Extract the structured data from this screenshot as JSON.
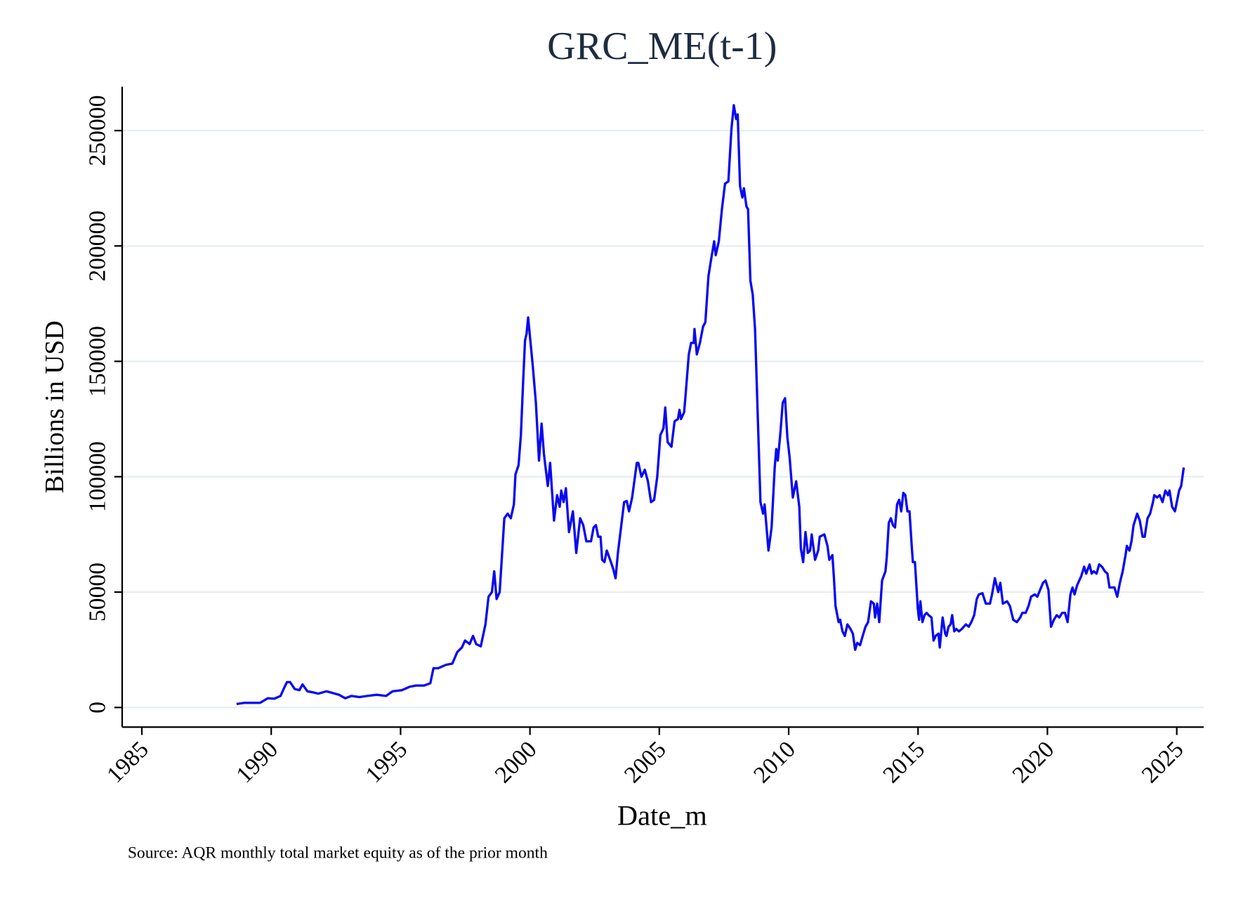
{
  "chart_data": {
    "type": "line",
    "title": "GRC_ME(t-1)",
    "x_label": "Date_m",
    "y_label": "Billions in USD",
    "note": "Source: AQR monthly total market equity as of the prior month",
    "grid": true,
    "xlim": [
      1984.24,
      2026.04
    ],
    "ylim": [
      -8500,
      269000
    ],
    "xticks": [
      1985,
      1990,
      1995,
      2000,
      2005,
      2010,
      2015,
      2020,
      2025
    ],
    "yticks": [
      0,
      50000,
      100000,
      150000,
      200000,
      250000
    ],
    "x": [
      1988.66,
      1988.96,
      1989.2,
      1989.57,
      1989.87,
      1990.12,
      1990.36,
      1990.48,
      1990.61,
      1990.73,
      1990.91,
      1991.09,
      1991.21,
      1991.4,
      1991.64,
      1991.82,
      1992.13,
      1992.31,
      1992.62,
      1992.86,
      1993.1,
      1993.41,
      1993.71,
      1994.08,
      1994.44,
      1994.69,
      1995.05,
      1995.36,
      1995.6,
      1995.91,
      1996.15,
      1996.27,
      1996.45,
      1996.76,
      1997.0,
      1997.19,
      1997.37,
      1997.49,
      1997.67,
      1997.8,
      1997.92,
      1998.1,
      1998.28,
      1998.4,
      1998.53,
      1998.62,
      1998.71,
      1998.83,
      1999.01,
      1999.14,
      1999.26,
      1999.38,
      1999.44,
      1999.56,
      1999.65,
      1999.74,
      1999.81,
      1999.87,
      1999.93,
      2000.11,
      2000.23,
      2000.35,
      2000.45,
      2000.54,
      2000.69,
      2000.78,
      2000.93,
      2001.05,
      2001.15,
      2001.21,
      2001.3,
      2001.39,
      2001.51,
      2001.66,
      2001.79,
      2001.94,
      2002.06,
      2002.18,
      2002.36,
      2002.46,
      2002.55,
      2002.64,
      2002.73,
      2002.79,
      2002.88,
      2002.97,
      2003.1,
      2003.22,
      2003.31,
      2003.4,
      2003.52,
      2003.64,
      2003.74,
      2003.83,
      2003.95,
      2004.13,
      2004.19,
      2004.31,
      2004.44,
      2004.56,
      2004.68,
      2004.8,
      2004.92,
      2005.04,
      2005.16,
      2005.23,
      2005.32,
      2005.47,
      2005.59,
      2005.72,
      2005.78,
      2005.84,
      2005.96,
      2006.02,
      2006.14,
      2006.23,
      2006.33,
      2006.36,
      2006.45,
      2006.57,
      2006.69,
      2006.78,
      2006.9,
      2007.0,
      2007.12,
      2007.18,
      2007.3,
      2007.42,
      2007.54,
      2007.67,
      2007.79,
      2007.88,
      2007.97,
      2008.03,
      2008.12,
      2008.21,
      2008.27,
      2008.37,
      2008.43,
      2008.52,
      2008.61,
      2008.7,
      2008.82,
      2008.91,
      2009.01,
      2009.07,
      2009.13,
      2009.22,
      2009.34,
      2009.46,
      2009.52,
      2009.58,
      2009.68,
      2009.77,
      2009.86,
      2009.95,
      2010.04,
      2010.16,
      2010.29,
      2010.41,
      2010.47,
      2010.56,
      2010.65,
      2010.74,
      2010.83,
      2010.89,
      2011.02,
      2011.14,
      2011.2,
      2011.38,
      2011.5,
      2011.57,
      2011.69,
      2011.75,
      2011.81,
      2011.93,
      2011.99,
      2012.08,
      2012.17,
      2012.27,
      2012.39,
      2012.48,
      2012.57,
      2012.65,
      2012.76,
      2012.86,
      2012.97,
      2013.07,
      2013.18,
      2013.29,
      2013.34,
      2013.42,
      2013.5,
      2013.61,
      2013.74,
      2013.79,
      2013.87,
      2013.95,
      2014.03,
      2014.11,
      2014.19,
      2014.27,
      2014.35,
      2014.43,
      2014.51,
      2014.59,
      2014.67,
      2014.75,
      2014.8,
      2014.88,
      2014.99,
      2015.04,
      2015.09,
      2015.17,
      2015.25,
      2015.33,
      2015.41,
      2015.52,
      2015.6,
      2015.68,
      2015.79,
      2015.84,
      2015.95,
      2016.05,
      2016.1,
      2016.18,
      2016.26,
      2016.32,
      2016.4,
      2016.48,
      2016.58,
      2016.69,
      2016.77,
      2016.85,
      2016.96,
      2017.06,
      2017.17,
      2017.27,
      2017.35,
      2017.49,
      2017.62,
      2017.78,
      2017.86,
      2017.97,
      2018.1,
      2018.18,
      2018.28,
      2018.44,
      2018.55,
      2018.68,
      2018.82,
      2018.95,
      2019.03,
      2019.16,
      2019.27,
      2019.37,
      2019.51,
      2019.61,
      2019.72,
      2019.83,
      2019.93,
      2020.04,
      2020.14,
      2020.25,
      2020.36,
      2020.46,
      2020.57,
      2020.68,
      2020.78,
      2020.89,
      2020.97,
      2021.05,
      2021.15,
      2021.31,
      2021.42,
      2021.5,
      2021.63,
      2021.71,
      2021.79,
      2021.9,
      2022.0,
      2022.11,
      2022.22,
      2022.32,
      2022.4,
      2022.48,
      2022.59,
      2022.7,
      2022.8,
      2022.91,
      2023.02,
      2023.07,
      2023.17,
      2023.25,
      2023.33,
      2023.47,
      2023.57,
      2023.68,
      2023.76,
      2023.87,
      2023.97,
      2024.08,
      2024.13,
      2024.24,
      2024.34,
      2024.45,
      2024.56,
      2024.66,
      2024.72,
      2024.82,
      2024.93,
      2025.09,
      2025.17,
      2025.27
    ],
    "series": [
      {
        "color": "#0a0aef",
        "values": [
          1500,
          2000,
          2000,
          2000,
          4000,
          3800,
          5000,
          8000,
          11000,
          11000,
          8000,
          7500,
          10000,
          7000,
          6500,
          6000,
          7000,
          6500,
          5500,
          4000,
          5000,
          4500,
          5000,
          5500,
          5000,
          7000,
          7500,
          9000,
          9500,
          9500,
          10500,
          17000,
          17000,
          18500,
          19000,
          24000,
          26000,
          29000,
          27500,
          31000,
          27500,
          26500,
          36000,
          48000,
          50000,
          59000,
          47000,
          50000,
          82000,
          84000,
          82000,
          88000,
          101000,
          105000,
          118000,
          142000,
          159000,
          162000,
          169000,
          148000,
          132000,
          107000,
          123000,
          110000,
          96000,
          106000,
          81000,
          92000,
          87000,
          94000,
          89000,
          95000,
          76000,
          85000,
          67000,
          82000,
          79000,
          72000,
          72000,
          78000,
          79000,
          74000,
          74000,
          64000,
          63000,
          68000,
          64000,
          60000,
          56000,
          67000,
          78000,
          89000,
          89500,
          85000,
          91000,
          106000,
          106000,
          100000,
          103000,
          98000,
          89000,
          90000,
          100000,
          118000,
          121000,
          130000,
          115000,
          113000,
          124000,
          125000,
          129000,
          125000,
          128000,
          136000,
          153000,
          158000,
          158000,
          164000,
          153000,
          158000,
          165000,
          167000,
          187000,
          194000,
          202000,
          196000,
          202000,
          216000,
          227000,
          228000,
          251000,
          261000,
          255000,
          257000,
          226000,
          221000,
          225000,
          217000,
          216000,
          185000,
          179000,
          164000,
          121000,
          89000,
          84000,
          88000,
          80000,
          68000,
          78000,
          104000,
          112000,
          107000,
          119000,
          132000,
          134000,
          117000,
          108000,
          91000,
          98000,
          87000,
          69000,
          63000,
          76000,
          67000,
          68000,
          75000,
          64000,
          68000,
          74000,
          75000,
          70000,
          64000,
          66000,
          56000,
          44000,
          37000,
          38000,
          33000,
          31000,
          36000,
          34000,
          32000,
          25000,
          28000,
          27000,
          31000,
          35000,
          37000,
          46000,
          45000,
          39000,
          45000,
          37000,
          55000,
          59000,
          65000,
          80000,
          82000,
          79000,
          78000,
          88000,
          90000,
          85000,
          93000,
          92000,
          85000,
          85000,
          71000,
          63000,
          63000,
          43000,
          38000,
          46000,
          37000,
          40000,
          41000,
          40000,
          39000,
          29000,
          31000,
          32000,
          26000,
          39000,
          32000,
          31000,
          35000,
          36000,
          40000,
          33000,
          34000,
          33000,
          34000,
          35000,
          36000,
          35000,
          37000,
          40000,
          47000,
          49000,
          49500,
          45000,
          45000,
          49000,
          56000,
          50000,
          54000,
          45000,
          46000,
          44000,
          38000,
          37000,
          39000,
          41000,
          41000,
          44000,
          48000,
          49000,
          48000,
          51000,
          54000,
          55000,
          51000,
          35000,
          38000,
          40000,
          39000,
          41000,
          41000,
          37000,
          49000,
          52000,
          49000,
          53000,
          57000,
          61000,
          58000,
          62000,
          58000,
          59000,
          58000,
          62000,
          61000,
          59000,
          58000,
          52000,
          52000,
          52000,
          48000,
          54000,
          59000,
          66000,
          70000,
          68000,
          72000,
          79000,
          84000,
          81000,
          74000,
          74000,
          82000,
          84000,
          89000,
          92000,
          91000,
          92000,
          89000,
          94000,
          92000,
          94000,
          87000,
          85000,
          94000,
          96000,
          104000
        ]
      }
    ]
  }
}
